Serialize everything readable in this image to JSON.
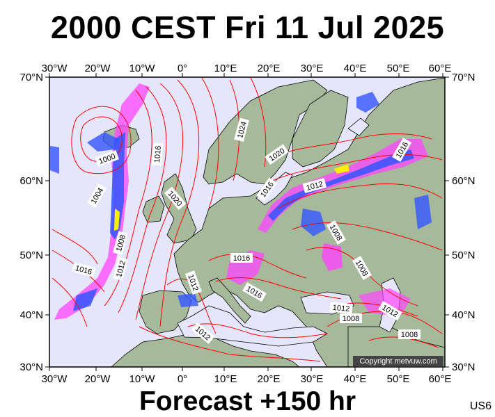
{
  "header": {
    "title": "2000 CEST Fri 11 Jul 2025"
  },
  "footer": {
    "forecast": "Forecast +150 hr",
    "code": "US6"
  },
  "copyright": "Copyright metvuw.com",
  "axes": {
    "lon_labels": [
      "30°W",
      "20°W",
      "10°W",
      "0°",
      "10°E",
      "20°E",
      "30°E",
      "40°E",
      "50°E",
      "60°E"
    ],
    "lat_labels": [
      "70°N",
      "60°N",
      "50°N",
      "40°N",
      "30°N"
    ]
  },
  "isobar_labels": [
    "1000",
    "1004",
    "1008",
    "1012",
    "1016",
    "1016",
    "1016",
    "1020",
    "1020",
    "1024",
    "1016",
    "1012",
    "1008",
    "1008",
    "1016",
    "1016",
    "1012",
    "1012",
    "1012",
    "1008",
    "1008",
    "1012"
  ],
  "colors": {
    "ocean": "#e6e6fa",
    "land": "#a7b99b",
    "isobar": "#ff0000",
    "coast": "#000000",
    "rain_low": "#ff00ff",
    "rain_mid": "#3355ff",
    "rain_high": "#ffff00"
  }
}
